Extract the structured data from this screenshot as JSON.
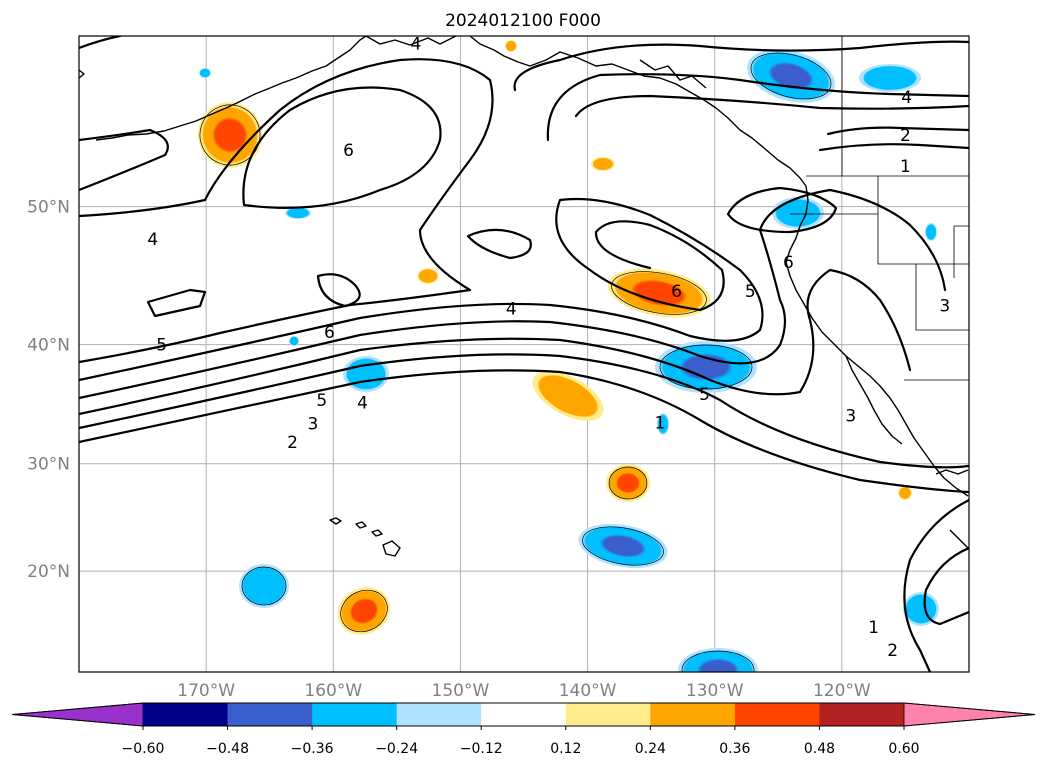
{
  "title": "2024012100 F000",
  "map": {
    "lon_range": [
      -180,
      -110
    ],
    "lat_range": [
      10,
      60
    ],
    "lat_ticks": [
      {
        "label": "50°N",
        "lat": 50
      },
      {
        "label": "40°N",
        "lat": 40
      },
      {
        "label": "30°N",
        "lat": 30
      },
      {
        "label": "20°N",
        "lat": 20
      }
    ],
    "lon_ticks": [
      {
        "label": "170°W",
        "lon": -170
      },
      {
        "label": "160°W",
        "lon": -160
      },
      {
        "label": "150°W",
        "lon": -150
      },
      {
        "label": "140°W",
        "lon": -140
      },
      {
        "label": "130°W",
        "lon": -130
      },
      {
        "label": "120°W",
        "lon": -120
      }
    ],
    "grid": true,
    "coastlines": true
  },
  "colorbar": {
    "position": "bottom",
    "extend": "both",
    "levels": [
      "−0.60",
      "−0.48",
      "−0.36",
      "−0.24",
      "−0.12",
      "0.12",
      "0.24",
      "0.36",
      "0.48",
      "0.60"
    ],
    "colors": [
      "#9932cc",
      "#00008b",
      "#3a5fcd",
      "#00bfff",
      "#b0e2ff",
      "#ffffff",
      "#ffec8b",
      "#ffa500",
      "#ff4500",
      "#b22222",
      "#ff82ab"
    ]
  },
  "contour_labels": [
    {
      "text": "4",
      "lon": -153.5,
      "lat": 59.6
    },
    {
      "text": "6",
      "lon": -158.8,
      "lat": 53.6
    },
    {
      "text": "4",
      "lon": -174.2,
      "lat": 47.8
    },
    {
      "text": "6",
      "lon": -160.3,
      "lat": 41.0
    },
    {
      "text": "5",
      "lon": -173.5,
      "lat": 40.0
    },
    {
      "text": "4",
      "lon": -146.0,
      "lat": 42.8
    },
    {
      "text": "6",
      "lon": -133.0,
      "lat": 44.1
    },
    {
      "text": "5",
      "lon": -127.2,
      "lat": 44.1
    },
    {
      "text": "6",
      "lon": -124.2,
      "lat": 46.2
    },
    {
      "text": "5",
      "lon": -130.8,
      "lat": 36.0
    },
    {
      "text": "1",
      "lon": -134.3,
      "lat": 33.6
    },
    {
      "text": "3",
      "lon": -119.3,
      "lat": 34.2
    },
    {
      "text": "5",
      "lon": -160.9,
      "lat": 35.5
    },
    {
      "text": "4",
      "lon": -157.7,
      "lat": 35.3
    },
    {
      "text": "3",
      "lon": -161.6,
      "lat": 33.5
    },
    {
      "text": "2",
      "lon": -163.2,
      "lat": 31.9
    },
    {
      "text": "4",
      "lon": -114.9,
      "lat": 56.7
    },
    {
      "text": "2",
      "lon": -115.0,
      "lat": 54.5
    },
    {
      "text": "1",
      "lon": -115.0,
      "lat": 52.6
    },
    {
      "text": "3",
      "lon": -111.9,
      "lat": 43.0
    },
    {
      "text": "1",
      "lon": -117.5,
      "lat": 14.5
    },
    {
      "text": "2",
      "lon": -116.0,
      "lat": 12.2
    }
  ]
}
